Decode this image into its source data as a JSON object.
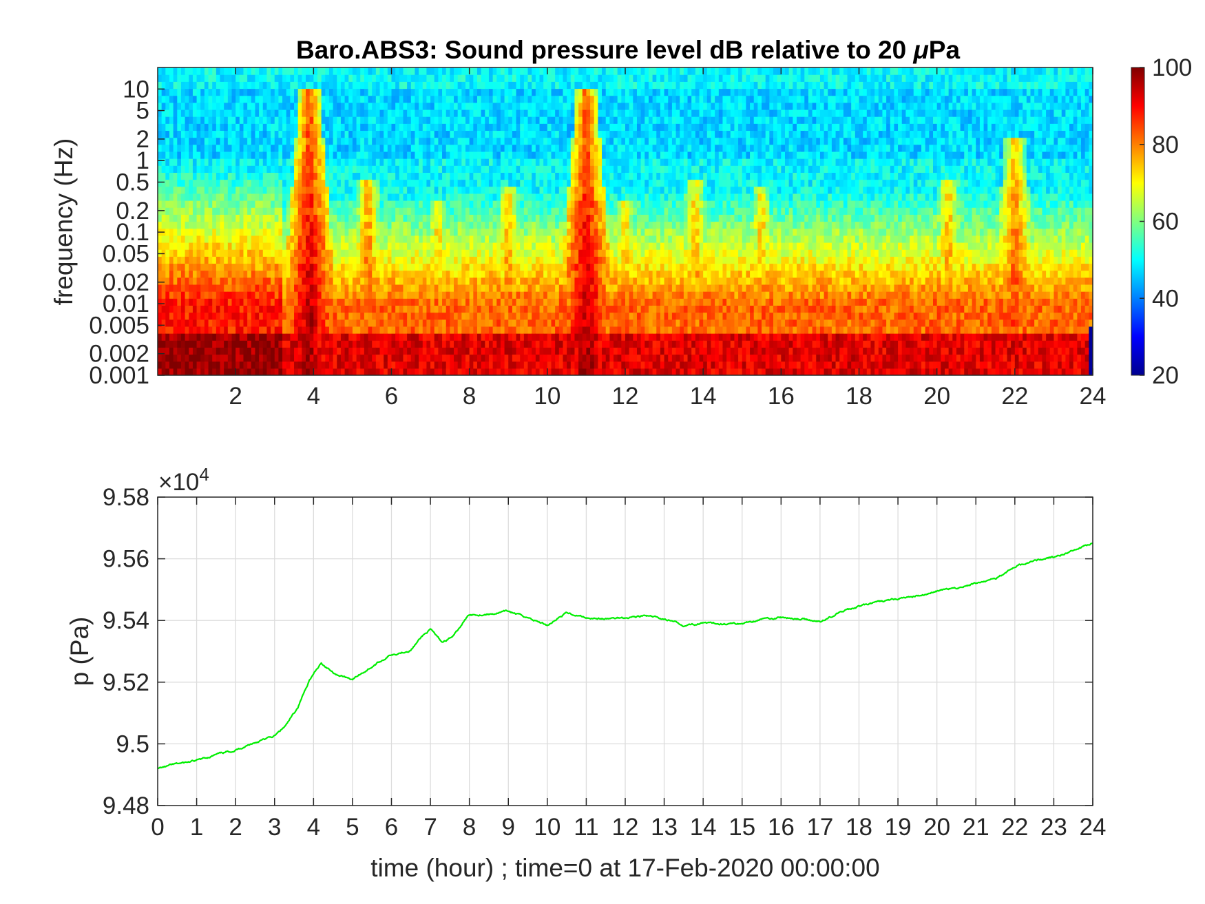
{
  "chart_data": [
    {
      "type": "heatmap",
      "title": "Baro.ABS3: Sound pressure level dB relative to 20 μPa",
      "title_main": "Baro.ABS3: Sound pressure level dB relative to 20 ",
      "title_unit": "Pa",
      "title_unit_prefix": "μ",
      "ylabel": "frequency (Hz)",
      "xlabel": "",
      "y_scale": "log",
      "xlim": [
        0,
        24
      ],
      "ylim": [
        0.001,
        20
      ],
      "x_ticks": [
        2,
        4,
        6,
        8,
        10,
        12,
        14,
        16,
        18,
        20,
        22,
        24
      ],
      "x_tick_labels": [
        "2",
        "4",
        "6",
        "8",
        "10",
        "12",
        "14",
        "16",
        "18",
        "20",
        "22",
        "24"
      ],
      "y_ticks": [
        0.001,
        0.002,
        0.005,
        0.01,
        0.02,
        0.05,
        0.1,
        0.2,
        0.5,
        1,
        2,
        5,
        10
      ],
      "y_tick_labels": [
        "0.001",
        "0.002",
        "0.005",
        "0.01",
        "0.02",
        "0.05",
        "0.1",
        "0.2",
        "0.5",
        "1",
        "2",
        "5",
        "10"
      ],
      "colormap": "jet",
      "clim": [
        20,
        100
      ],
      "colorbar_ticks": [
        20,
        40,
        60,
        80,
        100
      ],
      "colorbar_tick_labels": [
        "20",
        "40",
        "60",
        "80",
        "100"
      ],
      "colorbar_location": "right",
      "events": [
        {
          "time": 3.9,
          "top_frequency": 10,
          "peak_level": 95
        },
        {
          "time": 5.4,
          "top_frequency": 0.6,
          "peak_level": 88
        },
        {
          "time": 7.2,
          "top_frequency": 0.3,
          "peak_level": 84
        },
        {
          "time": 9.0,
          "top_frequency": 0.4,
          "peak_level": 86
        },
        {
          "time": 11.0,
          "top_frequency": 10,
          "peak_level": 95
        },
        {
          "time": 12.0,
          "top_frequency": 0.3,
          "peak_level": 84
        },
        {
          "time": 13.8,
          "top_frequency": 0.5,
          "peak_level": 85
        },
        {
          "time": 15.5,
          "top_frequency": 0.4,
          "peak_level": 84
        },
        {
          "time": 20.3,
          "top_frequency": 0.5,
          "peak_level": 86
        },
        {
          "time": 22.0,
          "top_frequency": 2,
          "peak_level": 88
        }
      ]
    },
    {
      "type": "line",
      "title": "",
      "xlabel": "time (hour) ; time=0 at 17-Feb-2020 00:00:00",
      "ylabel": "p (Pa)",
      "xlim": [
        0,
        24
      ],
      "ylim": [
        94800,
        95800
      ],
      "y_exponent_label": "×10",
      "y_exponent_power": "4",
      "x_ticks": [
        0,
        1,
        2,
        3,
        4,
        5,
        6,
        7,
        8,
        9,
        10,
        11,
        12,
        13,
        14,
        15,
        16,
        17,
        18,
        19,
        20,
        21,
        22,
        23,
        24
      ],
      "x_tick_labels": [
        "0",
        "1",
        "2",
        "3",
        "4",
        "5",
        "6",
        "7",
        "8",
        "9",
        "10",
        "11",
        "12",
        "13",
        "14",
        "15",
        "16",
        "17",
        "18",
        "19",
        "20",
        "21",
        "22",
        "23",
        "24"
      ],
      "y_ticks": [
        94800,
        95000,
        95200,
        95400,
        95600,
        95800
      ],
      "y_tick_labels": [
        "9.48",
        "9.5",
        "9.52",
        "9.54",
        "9.56",
        "9.58"
      ],
      "grid": true,
      "color": "#00ee00",
      "x": [
        0,
        0.5,
        1.0,
        1.5,
        2.0,
        2.5,
        3.0,
        3.3,
        3.6,
        3.9,
        4.2,
        4.6,
        5.0,
        5.5,
        6.0,
        6.5,
        6.8,
        7.0,
        7.3,
        7.6,
        8.0,
        8.5,
        9.0,
        9.5,
        10.0,
        10.5,
        11.0,
        11.5,
        12.0,
        12.5,
        13.0,
        13.5,
        14.0,
        14.5,
        15.0,
        15.5,
        16.0,
        16.5,
        17.0,
        17.5,
        18.0,
        18.5,
        19.0,
        19.5,
        20.0,
        20.5,
        21.0,
        21.5,
        22.0,
        22.5,
        23.0,
        23.5,
        24.0
      ],
      "y": [
        94920,
        94935,
        94945,
        94965,
        94980,
        95005,
        95025,
        95060,
        95120,
        95210,
        95260,
        95225,
        95210,
        95250,
        95290,
        95305,
        95350,
        95370,
        95330,
        95350,
        95420,
        95420,
        95430,
        95410,
        95385,
        95425,
        95410,
        95405,
        95410,
        95415,
        95405,
        95385,
        95390,
        95390,
        95390,
        95405,
        95410,
        95405,
        95395,
        95425,
        95445,
        95460,
        95470,
        95480,
        95495,
        95505,
        95520,
        95535,
        95575,
        95595,
        95605,
        95625,
        95650
      ]
    }
  ]
}
